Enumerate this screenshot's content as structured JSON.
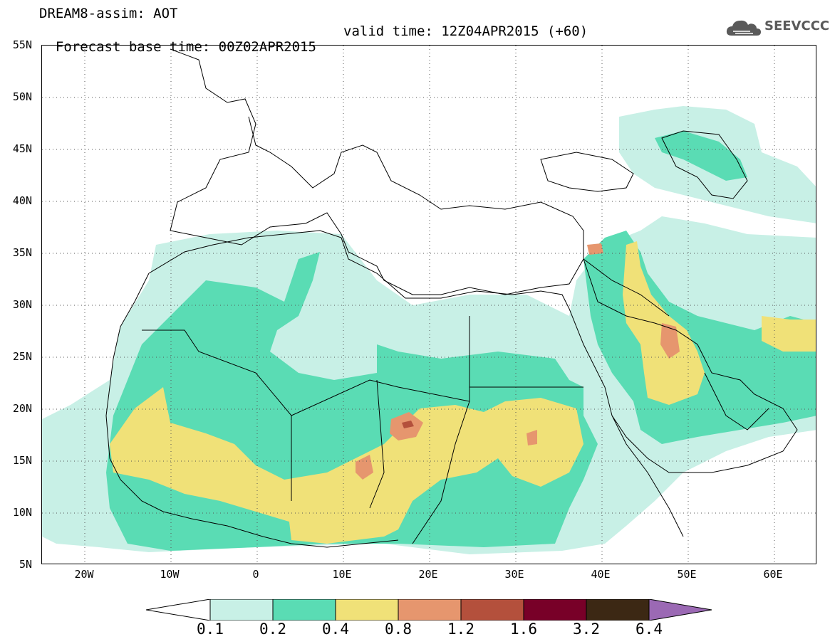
{
  "header": {
    "title": "DREAM8-assim: AOT",
    "forecast_base": "Forecast base time: 00Z02APR2015",
    "valid_time": "valid time: 12Z04APR2015 (+60)"
  },
  "logo": {
    "text": "SEEVCCC",
    "icon": "cloud-icon"
  },
  "map": {
    "lat_labels": [
      "55N",
      "50N",
      "45N",
      "40N",
      "35N",
      "30N",
      "25N",
      "20N",
      "15N",
      "10N",
      "5N"
    ],
    "lon_labels": [
      "20W",
      "10W",
      "0",
      "10E",
      "20E",
      "30E",
      "40E",
      "50E",
      "60E"
    ],
    "lon_range": [
      -25,
      65
    ],
    "lat_range": [
      5,
      55
    ],
    "gridlines": "dotted"
  },
  "legend": {
    "labels": [
      "0.1",
      "0.2",
      "0.4",
      "0.8",
      "1.2",
      "1.6",
      "3.2",
      "6.4"
    ],
    "colors": [
      "#ffffff",
      "#c8f0e6",
      "#5adcb4",
      "#f0e178",
      "#e6966e",
      "#b4503c",
      "#780028",
      "#3c2814",
      "#9b69b4"
    ]
  },
  "colors": {
    "aot_0_1": "#c8f0e6",
    "aot_0_2": "#5adcb4",
    "aot_0_4": "#f0e178",
    "aot_0_8": "#e6966e",
    "aot_1_2": "#b4503c"
  }
}
